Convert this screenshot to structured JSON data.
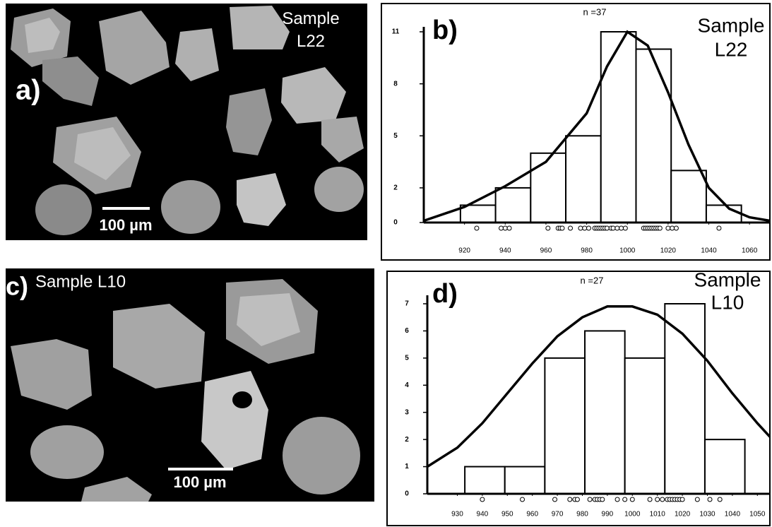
{
  "panels": [
    {
      "label": "a)",
      "sample": "Sample L22",
      "scale": "100 µm"
    },
    {
      "label": "c)",
      "sample": "Sample L10",
      "scale": "100 µm"
    }
  ],
  "chart_data": [
    {
      "type": "histogram",
      "panel_label": "b)",
      "annotation": "n =37",
      "sample_label": [
        "Sample",
        "L22"
      ],
      "bins": [
        918,
        935.25,
        952.5,
        969.75,
        987,
        1004.25,
        1021.5,
        1038.75,
        1056
      ],
      "counts": [
        1,
        2,
        4,
        5,
        11,
        10,
        3,
        1
      ],
      "curve": {
        "x": [
          900,
          920,
          940,
          960,
          980,
          990,
          1000,
          1010,
          1020,
          1030,
          1040,
          1050,
          1060,
          1070
        ],
        "values": [
          0.1,
          0.9,
          2.1,
          3.5,
          6.3,
          9,
          11,
          10.2,
          7.5,
          4.5,
          2,
          0.8,
          0.3,
          0.1
        ]
      },
      "samples": [
        926,
        938,
        940,
        942,
        961,
        966,
        967,
        968,
        972,
        977,
        979,
        981,
        984,
        985,
        986,
        987,
        988,
        989,
        990,
        992,
        993,
        995,
        997,
        999,
        1008,
        1009,
        1010,
        1011,
        1012,
        1013,
        1014,
        1015,
        1016,
        1020,
        1022,
        1024,
        1045
      ],
      "xlim": [
        900,
        1070
      ],
      "xticks": [
        920,
        940,
        960,
        980,
        1000,
        1020,
        1040,
        1060
      ],
      "ylim": [
        0,
        11
      ],
      "yticks": [
        0,
        2,
        5,
        8,
        11
      ],
      "color": "#000000"
    },
    {
      "type": "histogram",
      "panel_label": "d)",
      "annotation": "n =27",
      "sample_label": [
        "Sample",
        "L10"
      ],
      "bins": [
        933,
        949,
        965,
        981,
        997,
        1013,
        1029,
        1045
      ],
      "counts": [
        1,
        1,
        5,
        6,
        5,
        7,
        2
      ],
      "curve": {
        "x": [
          918,
          930,
          940,
          950,
          960,
          970,
          980,
          990,
          1000,
          1010,
          1020,
          1030,
          1040,
          1050,
          1055
        ],
        "values": [
          1,
          1.7,
          2.6,
          3.7,
          4.8,
          5.8,
          6.5,
          6.9,
          6.9,
          6.6,
          5.9,
          4.9,
          3.7,
          2.6,
          2.1
        ]
      },
      "samples": [
        940,
        956,
        969,
        975,
        977,
        978,
        983,
        985,
        986,
        987,
        988,
        994,
        997,
        1000,
        1007,
        1010,
        1012,
        1014,
        1015,
        1016,
        1017,
        1018,
        1019,
        1020,
        1026,
        1031,
        1035
      ],
      "xlim": [
        918,
        1055
      ],
      "xticks": [
        930,
        940,
        950,
        960,
        970,
        980,
        990,
        1000,
        1010,
        1020,
        1030,
        1040,
        1050
      ],
      "ylim": [
        0,
        7
      ],
      "yticks": [
        0,
        1,
        2,
        3,
        4,
        5,
        6,
        7
      ],
      "color": "#000000"
    }
  ]
}
